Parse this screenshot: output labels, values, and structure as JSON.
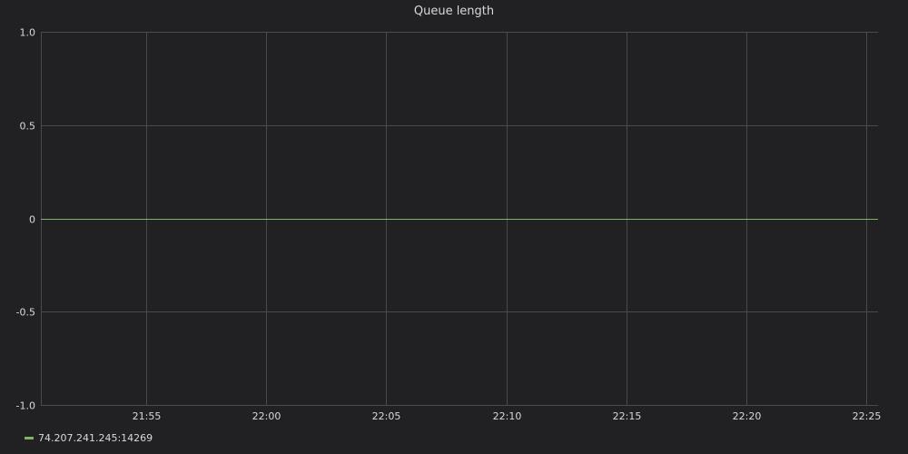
{
  "chart_data": {
    "type": "line",
    "title": "Queue length",
    "xlabel": "",
    "ylabel": "",
    "x_ticks": [
      "21:55",
      "22:00",
      "22:05",
      "22:10",
      "22:15",
      "22:20",
      "22:25"
    ],
    "xlim": [
      "21:50:36",
      "22:25:30"
    ],
    "y_ticks": [
      1.0,
      0.5,
      0,
      -0.5,
      -1.0
    ],
    "y_tick_labels": [
      "1.0",
      "0.5",
      "0",
      "-0.5",
      "-1.0"
    ],
    "ylim": [
      -1.0,
      1.0
    ],
    "grid": true,
    "legend_position": "bottom-left",
    "series": [
      {
        "name": "74.207.241.245:14269",
        "color": "#7eb26d",
        "x": [
          "21:50:36",
          "22:25:30"
        ],
        "values": [
          0,
          0
        ]
      }
    ]
  },
  "colors": {
    "background": "#212124",
    "grid": "#4a4a4d",
    "text": "#d8d9da"
  }
}
